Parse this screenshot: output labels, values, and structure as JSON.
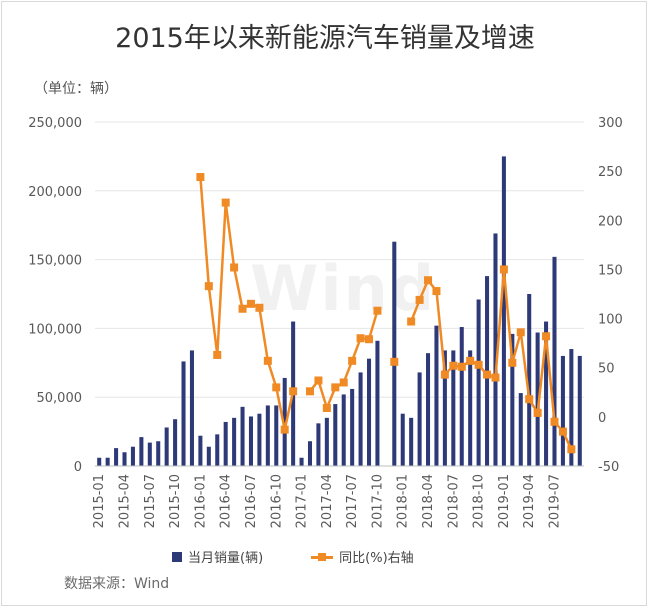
{
  "chart_data": {
    "type": "bar+line",
    "title": "2015年以来新能源汽车销量及增速",
    "unit_label": "（单位：辆）",
    "source": "数据来源：Wind",
    "watermark": "Wind",
    "categories": [
      "2015-01",
      "2015-02",
      "2015-03",
      "2015-04",
      "2015-05",
      "2015-06",
      "2015-07",
      "2015-08",
      "2015-09",
      "2015-10",
      "2015-11",
      "2015-12",
      "2016-01",
      "2016-02",
      "2016-03",
      "2016-04",
      "2016-05",
      "2016-06",
      "2016-07",
      "2016-08",
      "2016-09",
      "2016-10",
      "2016-11",
      "2016-12",
      "2017-01",
      "2017-02",
      "2017-03",
      "2017-04",
      "2017-05",
      "2017-06",
      "2017-07",
      "2017-08",
      "2017-09",
      "2017-10",
      "2017-11",
      "2017-12",
      "2018-01",
      "2018-02",
      "2018-03",
      "2018-04",
      "2018-05",
      "2018-06",
      "2018-07",
      "2018-08",
      "2018-09",
      "2018-10",
      "2018-11",
      "2018-12",
      "2019-01",
      "2019-02",
      "2019-03",
      "2019-04",
      "2019-05",
      "2019-06",
      "2019-07",
      "2019-08",
      "2019-09",
      "2019-10"
    ],
    "x_tick_labels": [
      "2015-01",
      "2015-04",
      "2015-07",
      "2015-10",
      "2016-01",
      "2016-04",
      "2016-07",
      "2016-10",
      "2017-01",
      "2017-04",
      "2017-07",
      "2017-10",
      "2018-01",
      "2018-04",
      "2018-07",
      "2018-10",
      "2019-01",
      "2019-04",
      "2019-07"
    ],
    "left_axis": {
      "ylim": [
        0,
        250000
      ],
      "ticks": [
        "0",
        "50,000",
        "100,000",
        "150,000",
        "200,000",
        "250,000"
      ]
    },
    "right_axis": {
      "ylim": [
        -50,
        300
      ],
      "ticks": [
        "-50",
        "0",
        "50",
        "100",
        "150",
        "200",
        "250",
        "300"
      ]
    },
    "series": [
      {
        "name": "当月销量(辆)",
        "axis": "left",
        "kind": "bar",
        "color": "#2e3a78",
        "values": [
          6000,
          6000,
          13000,
          10000,
          14000,
          21000,
          17000,
          18000,
          28000,
          34000,
          76000,
          84000,
          22000,
          14000,
          23000,
          32000,
          35000,
          43000,
          36000,
          38000,
          44000,
          44000,
          64000,
          105000,
          6000,
          18000,
          31000,
          35000,
          45000,
          52000,
          56000,
          68000,
          78000,
          91000,
          null,
          163000,
          38000,
          35000,
          68000,
          82000,
          102000,
          84000,
          84000,
          101000,
          84000,
          121000,
          138000,
          169000,
          225000,
          96000,
          53000,
          125000,
          97000,
          105000,
          152000,
          80000,
          85000,
          80000
        ]
      },
      {
        "name": "同比(%)右轴",
        "axis": "right",
        "kind": "line",
        "color": "#f08a24",
        "values": [
          null,
          null,
          null,
          null,
          null,
          null,
          null,
          null,
          null,
          null,
          null,
          null,
          244,
          133,
          63,
          218,
          152,
          110,
          115,
          111,
          57,
          30,
          -13,
          26,
          null,
          26,
          37,
          9,
          30,
          35,
          57,
          80,
          79,
          108,
          null,
          56,
          null,
          97,
          119,
          139,
          128,
          43,
          52,
          51,
          57,
          53,
          43,
          40,
          150,
          55,
          86,
          18,
          4,
          82,
          -5,
          -15,
          -33,
          null
        ]
      }
    ]
  },
  "legend": {
    "bar_label": "当月销量(辆)",
    "line_label": "同比(%)右轴"
  }
}
